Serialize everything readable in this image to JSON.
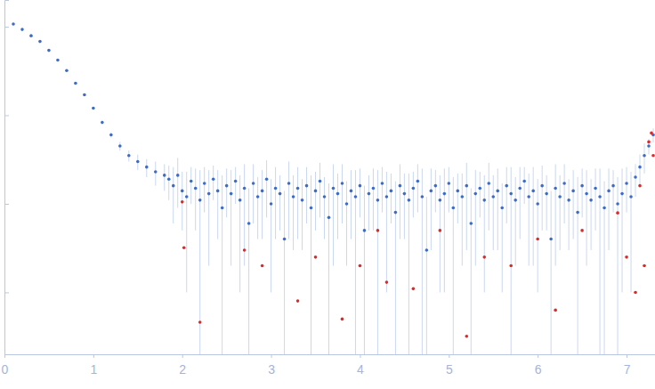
{
  "chart_data": {
    "type": "scatter",
    "log": "y",
    "tick_labels": "x",
    "grid": false,
    "xlim": [
      0,
      7.32
    ],
    "xticks": [
      0,
      1,
      2,
      3,
      4,
      5,
      6,
      7
    ],
    "ylim": [
      0.0002,
      2
    ],
    "yticks": [
      0.001,
      0.01,
      0.1,
      1
    ],
    "series": [
      {
        "color": "#3d6cc8",
        "marker": "circle",
        "x": [
          0.1,
          0.2,
          0.3,
          0.4,
          0.5,
          0.6,
          0.7,
          0.8,
          0.9,
          1.0,
          1.1,
          1.2,
          1.3,
          1.4,
          1.5,
          1.6,
          1.7,
          1.8,
          1.85,
          1.9,
          1.95,
          2.0,
          2.05,
          2.1,
          2.15,
          2.2,
          2.25,
          2.3,
          2.35,
          2.4,
          2.45,
          2.5,
          2.55,
          2.6,
          2.65,
          2.7,
          2.75,
          2.8,
          2.85,
          2.9,
          2.95,
          3.0,
          3.05,
          3.1,
          3.15,
          3.2,
          3.25,
          3.3,
          3.35,
          3.4,
          3.45,
          3.5,
          3.55,
          3.6,
          3.65,
          3.7,
          3.75,
          3.8,
          3.85,
          3.9,
          3.95,
          4.0,
          4.05,
          4.1,
          4.15,
          4.2,
          4.25,
          4.3,
          4.35,
          4.4,
          4.45,
          4.5,
          4.55,
          4.6,
          4.65,
          4.7,
          4.75,
          4.8,
          4.85,
          4.9,
          4.95,
          5.0,
          5.05,
          5.1,
          5.15,
          5.2,
          5.25,
          5.3,
          5.35,
          5.4,
          5.45,
          5.5,
          5.55,
          5.6,
          5.65,
          5.7,
          5.75,
          5.8,
          5.85,
          5.9,
          5.95,
          6.0,
          6.05,
          6.1,
          6.15,
          6.2,
          6.25,
          6.3,
          6.35,
          6.4,
          6.45,
          6.5,
          6.55,
          6.6,
          6.65,
          6.7,
          6.75,
          6.8,
          6.85,
          6.9,
          6.95,
          7.0,
          7.05,
          7.1,
          7.15,
          7.2,
          7.25,
          7.3
        ],
        "values": [
          1.07,
          0.93,
          0.79,
          0.68,
          0.54,
          0.42,
          0.32,
          0.23,
          0.17,
          0.12,
          0.083,
          0.06,
          0.045,
          0.035,
          0.03,
          0.026,
          0.023,
          0.021,
          0.019,
          0.016,
          0.021,
          0.014,
          0.012,
          0.018,
          0.015,
          0.011,
          0.017,
          0.013,
          0.019,
          0.014,
          0.009,
          0.016,
          0.013,
          0.018,
          0.011,
          0.015,
          0.006,
          0.017,
          0.012,
          0.014,
          0.019,
          0.01,
          0.015,
          0.013,
          0.004,
          0.017,
          0.012,
          0.015,
          0.011,
          0.016,
          0.009,
          0.014,
          0.018,
          0.012,
          0.007,
          0.015,
          0.013,
          0.017,
          0.01,
          0.014,
          0.012,
          0.016,
          0.005,
          0.013,
          0.015,
          0.011,
          0.017,
          0.012,
          0.014,
          0.008,
          0.016,
          0.013,
          0.011,
          0.015,
          0.018,
          0.012,
          0.003,
          0.014,
          0.016,
          0.011,
          0.013,
          0.017,
          0.009,
          0.014,
          0.012,
          0.016,
          0.006,
          0.013,
          0.015,
          0.011,
          0.017,
          0.012,
          0.014,
          0.009,
          0.016,
          0.013,
          0.011,
          0.015,
          0.018,
          0.012,
          0.014,
          0.01,
          0.016,
          0.013,
          0.004,
          0.015,
          0.012,
          0.017,
          0.011,
          0.014,
          0.008,
          0.016,
          0.013,
          0.011,
          0.015,
          0.012,
          0.009,
          0.014,
          0.016,
          0.01,
          0.013,
          0.017,
          0.012,
          0.02,
          0.026,
          0.035,
          0.045,
          0.06
        ],
        "errors": [
          0.01,
          0.01,
          0.01,
          0.01,
          0.01,
          0.008,
          0.006,
          0.005,
          0.004,
          0.004,
          0.004,
          0.004,
          0.005,
          0.005,
          0.006,
          0.006,
          0.007,
          0.007,
          0.008,
          0.01,
          0.012,
          0.009,
          0.011,
          0.008,
          0.01,
          0.013,
          0.009,
          0.011,
          0.008,
          0.01,
          0.012,
          0.009,
          0.011,
          0.008,
          0.01,
          0.013,
          0.009,
          0.011,
          0.008,
          0.01,
          0.012,
          0.009,
          0.011,
          0.008,
          0.01,
          0.013,
          0.009,
          0.011,
          0.008,
          0.01,
          0.012,
          0.009,
          0.011,
          0.008,
          0.01,
          0.013,
          0.009,
          0.011,
          0.008,
          0.01,
          0.012,
          0.009,
          0.011,
          0.008,
          0.01,
          0.013,
          0.009,
          0.011,
          0.008,
          0.01,
          0.012,
          0.009,
          0.011,
          0.008,
          0.01,
          0.013,
          0.009,
          0.011,
          0.008,
          0.01,
          0.012,
          0.009,
          0.011,
          0.008,
          0.01,
          0.013,
          0.009,
          0.011,
          0.008,
          0.01,
          0.012,
          0.009,
          0.011,
          0.008,
          0.01,
          0.013,
          0.009,
          0.011,
          0.008,
          0.01,
          0.012,
          0.009,
          0.011,
          0.008,
          0.01,
          0.013,
          0.009,
          0.011,
          0.008,
          0.01,
          0.012,
          0.009,
          0.011,
          0.008,
          0.01,
          0.013,
          0.009,
          0.011,
          0.008,
          0.01,
          0.012,
          0.009,
          0.011,
          0.008,
          0.01,
          0.013,
          0.009,
          0.011
        ]
      },
      {
        "color": "#e02828",
        "marker": "circle",
        "x": [
          2.0,
          2.02,
          2.2,
          2.7,
          2.9,
          3.3,
          3.5,
          3.8,
          4.0,
          4.2,
          4.3,
          4.6,
          4.9,
          5.2,
          5.4,
          5.7,
          6.0,
          6.2,
          6.5,
          6.9,
          7.0,
          7.1,
          7.15,
          7.2,
          7.25,
          7.28,
          7.3
        ],
        "values": [
          0.0105,
          0.0032,
          0.00046,
          0.003,
          0.002,
          0.0008,
          0.0025,
          0.0005,
          0.002,
          0.005,
          0.0013,
          0.0011,
          0.005,
          0.00032,
          0.0025,
          0.002,
          0.004,
          0.00063,
          0.005,
          0.0079,
          0.0025,
          0.001,
          0.016,
          0.002,
          0.05,
          0.063,
          0.035
        ]
      }
    ]
  }
}
